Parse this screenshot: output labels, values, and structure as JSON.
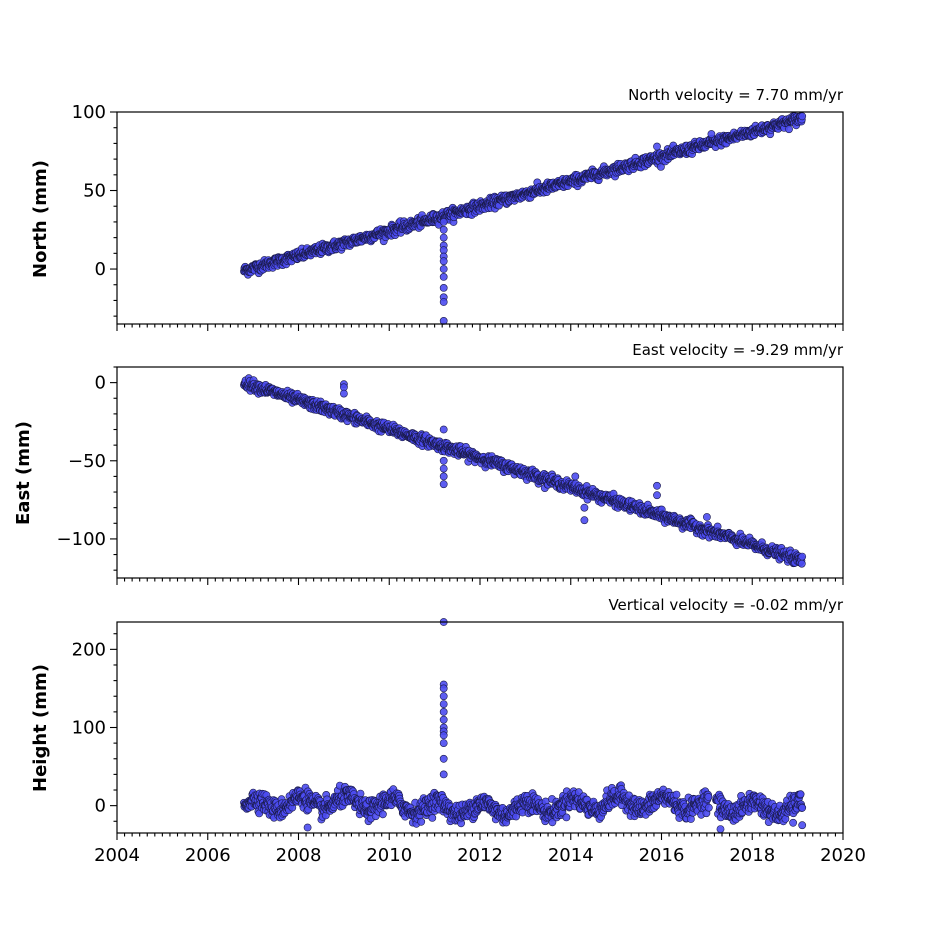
{
  "chart_data": [
    {
      "type": "scatter",
      "title": "North velocity = 7.70 mm/yr",
      "ylabel": "North (mm)",
      "xlabel": "",
      "ylim": [
        -35,
        100
      ],
      "yticks": [
        "0",
        "50",
        "100"
      ],
      "xlim": [
        2004,
        2020
      ],
      "show_x_tick_labels": false,
      "velocity_mm_per_yr": 7.7,
      "start_year": 2006.8,
      "end_year": 2019.1,
      "start_value": -1,
      "end_value": 96,
      "outliers": [
        {
          "x": 2011.2,
          "y": 30
        },
        {
          "x": 2011.2,
          "y": 25
        },
        {
          "x": 2011.2,
          "y": 20
        },
        {
          "x": 2011.2,
          "y": 15
        },
        {
          "x": 2011.2,
          "y": 12
        },
        {
          "x": 2011.2,
          "y": 8
        },
        {
          "x": 2011.2,
          "y": 5
        },
        {
          "x": 2011.2,
          "y": 0
        },
        {
          "x": 2011.2,
          "y": -5
        },
        {
          "x": 2011.2,
          "y": -12
        },
        {
          "x": 2011.2,
          "y": -18
        },
        {
          "x": 2011.2,
          "y": -21
        },
        {
          "x": 2011.2,
          "y": -33
        },
        {
          "x": 2015.9,
          "y": 78
        },
        {
          "x": 2017.1,
          "y": 86
        }
      ]
    },
    {
      "type": "scatter",
      "title": "East velocity = -9.29 mm/yr",
      "ylabel": "East (mm)",
      "xlabel": "",
      "ylim": [
        -125,
        10
      ],
      "yticks": [
        "0",
        "−50",
        "−100"
      ],
      "xlim": [
        2004,
        2020
      ],
      "show_x_tick_labels": false,
      "velocity_mm_per_yr": -9.29,
      "start_year": 2006.8,
      "end_year": 2019.1,
      "start_value": 0,
      "end_value": -114,
      "outliers": [
        {
          "x": 2009.0,
          "y": -1
        },
        {
          "x": 2009.0,
          "y": -3
        },
        {
          "x": 2009.0,
          "y": -7
        },
        {
          "x": 2011.2,
          "y": -30
        },
        {
          "x": 2011.2,
          "y": -50
        },
        {
          "x": 2011.2,
          "y": -55
        },
        {
          "x": 2011.2,
          "y": -60
        },
        {
          "x": 2011.2,
          "y": -65
        },
        {
          "x": 2014.1,
          "y": -60
        },
        {
          "x": 2014.3,
          "y": -88
        },
        {
          "x": 2014.3,
          "y": -80
        },
        {
          "x": 2015.9,
          "y": -66
        },
        {
          "x": 2015.9,
          "y": -72
        },
        {
          "x": 2017.0,
          "y": -86
        }
      ]
    },
    {
      "type": "scatter",
      "title": "Vertical velocity = -0.02 mm/yr",
      "ylabel": "Height (mm)",
      "xlabel": "",
      "ylim": [
        -35,
        235
      ],
      "yticks": [
        "0",
        "100",
        "200"
      ],
      "xlim": [
        2004,
        2020
      ],
      "xticks": [
        "2004",
        "2006",
        "2008",
        "2010",
        "2012",
        "2014",
        "2016",
        "2018",
        "2020"
      ],
      "show_x_tick_labels": true,
      "velocity_mm_per_yr": -0.02,
      "start_year": 2006.8,
      "end_year": 2019.1,
      "gap": [
        2017.05,
        2017.2
      ],
      "outliers": [
        {
          "x": 2011.2,
          "y": 235
        },
        {
          "x": 2011.2,
          "y": 155
        },
        {
          "x": 2011.2,
          "y": 150
        },
        {
          "x": 2011.2,
          "y": 140
        },
        {
          "x": 2011.2,
          "y": 130
        },
        {
          "x": 2011.2,
          "y": 120
        },
        {
          "x": 2011.2,
          "y": 110
        },
        {
          "x": 2011.2,
          "y": 100
        },
        {
          "x": 2011.2,
          "y": 95
        },
        {
          "x": 2011.2,
          "y": 90
        },
        {
          "x": 2011.2,
          "y": 80
        },
        {
          "x": 2011.2,
          "y": 60
        },
        {
          "x": 2011.2,
          "y": 40
        },
        {
          "x": 2008.2,
          "y": -28
        },
        {
          "x": 2017.3,
          "y": -30
        },
        {
          "x": 2018.9,
          "y": -22
        },
        {
          "x": 2019.1,
          "y": -25
        }
      ]
    }
  ],
  "colors": {
    "marker_fill": "#4b4bf0",
    "marker_edge": "#1a1a4a"
  }
}
